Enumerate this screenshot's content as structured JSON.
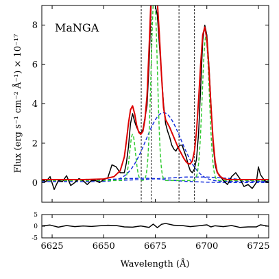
{
  "chart_data": [
    {
      "type": "line",
      "title": "MaNGA",
      "xlabel": "Wavelength (Å)",
      "ylabel": "Flux (erg s⁻¹ cm⁻² Å⁻¹) × 10⁻¹⁷",
      "xlim": [
        6620,
        6730
      ],
      "ylim": [
        -1,
        9
      ],
      "xticks": [
        6625,
        6650,
        6675,
        6700,
        6725
      ],
      "yticks": [
        0,
        2,
        4,
        6,
        8
      ],
      "grid": false,
      "vlines": [
        6668.2,
        6673.0,
        6686.5,
        6694.0
      ],
      "series": [
        {
          "role": "observed",
          "color": "#000000",
          "dash": "solid",
          "x": [
            6620,
            6622,
            6624,
            6626,
            6628,
            6630,
            6632,
            6634,
            6636,
            6638,
            6640,
            6642,
            6644,
            6646,
            6648,
            6650,
            6652,
            6654,
            6656,
            6658,
            6660,
            6661,
            6662,
            6663,
            6664,
            6665,
            6666,
            6667,
            6668,
            6669,
            6670,
            6671,
            6672,
            6673,
            6674,
            6675,
            6676,
            6677,
            6678,
            6679,
            6680,
            6681,
            6682,
            6683,
            6684,
            6685,
            6686,
            6687,
            6688,
            6689,
            6690,
            6691,
            6692,
            6693,
            6694,
            6695,
            6696,
            6697,
            6698,
            6699,
            6700,
            6701,
            6702,
            6703,
            6704,
            6705,
            6706,
            6708,
            6710,
            6712,
            6714,
            6716,
            6718,
            6720,
            6722,
            6724,
            6725,
            6726,
            6728,
            6730
          ],
          "y": [
            0.15,
            0.05,
            0.3,
            -0.35,
            0.1,
            0.05,
            0.35,
            -0.15,
            0.0,
            0.2,
            0.1,
            -0.1,
            0.1,
            0.1,
            0.0,
            0.15,
            0.25,
            0.9,
            0.8,
            0.5,
            0.5,
            1.0,
            1.8,
            3.0,
            3.5,
            3.1,
            2.8,
            2.6,
            2.5,
            2.7,
            3.3,
            3.9,
            6.0,
            9.0,
            9.5,
            9.0,
            8.5,
            7.0,
            5.5,
            4.0,
            3.0,
            2.6,
            2.3,
            1.9,
            1.7,
            1.6,
            1.8,
            1.9,
            1.9,
            1.6,
            1.3,
            0.9,
            0.6,
            0.5,
            0.7,
            1.2,
            2.5,
            4.8,
            7.2,
            8.0,
            7.5,
            6.0,
            4.0,
            2.0,
            0.9,
            0.5,
            0.4,
            0.1,
            -0.1,
            0.3,
            0.5,
            0.2,
            -0.2,
            -0.1,
            -0.3,
            0.0,
            0.8,
            0.4,
            0.1,
            0.0
          ]
        },
        {
          "role": "total fit",
          "color": "#dd0000",
          "dash": "solid",
          "x": [
            6620,
            6630,
            6640,
            6650,
            6655,
            6658,
            6660,
            6661,
            6662,
            6663,
            6664,
            6665,
            6666,
            6667,
            6668,
            6669,
            6670,
            6671,
            6672,
            6673,
            6674,
            6675,
            6676,
            6677,
            6678,
            6679,
            6680,
            6681,
            6682,
            6683,
            6684,
            6685,
            6686,
            6687,
            6688,
            6689,
            6690,
            6691,
            6692,
            6693,
            6694,
            6695,
            6696,
            6697,
            6698,
            6699,
            6700,
            6701,
            6702,
            6703,
            6704,
            6705,
            6706,
            6708,
            6710,
            6715,
            6720,
            6725,
            6730
          ],
          "y": [
            0.15,
            0.15,
            0.15,
            0.18,
            0.3,
            0.6,
            1.3,
            2.1,
            3.0,
            3.7,
            3.9,
            3.5,
            2.9,
            2.55,
            2.45,
            2.6,
            3.2,
            4.4,
            6.8,
            9.5,
            9.6,
            9.5,
            9.2,
            7.5,
            5.5,
            3.8,
            3.2,
            3.0,
            2.8,
            2.55,
            2.3,
            2.05,
            1.8,
            1.6,
            1.4,
            1.2,
            1.05,
            0.95,
            0.95,
            1.1,
            1.6,
            2.6,
            4.2,
            6.0,
            7.5,
            7.9,
            7.3,
            5.8,
            3.9,
            2.2,
            1.1,
            0.55,
            0.35,
            0.2,
            0.15,
            0.15,
            0.15,
            0.15,
            0.15
          ]
        },
        {
          "role": "narrow components",
          "color": "#33cc33",
          "dash": "dashed",
          "gaussians": [
            {
              "center": 6664.0,
              "sigma": 1.4,
              "amp": 2.35
            },
            {
              "center": 6674.5,
              "sigma": 1.5,
              "amp": 9.5
            },
            {
              "center": 6699.5,
              "sigma": 1.7,
              "amp": 7.3
            }
          ],
          "baseline": 0.1
        },
        {
          "role": "broad component",
          "color": "#1a33dd",
          "dash": "dashed",
          "gaussians": [
            {
              "center": 6679.0,
              "sigma": 8.5,
              "amp": 3.5
            }
          ],
          "baseline": 0.05
        },
        {
          "role": "broad base components",
          "color": "#1a33dd",
          "dash": "dashed",
          "x": [
            6620,
            6640,
            6660,
            6670,
            6680,
            6690,
            6700,
            6710,
            6720,
            6730
          ],
          "y": [
            0.1,
            0.1,
            0.12,
            0.16,
            0.22,
            0.28,
            0.28,
            0.22,
            0.12,
            0.05
          ]
        },
        {
          "role": "broad base components 2",
          "color": "#1a33dd",
          "dash": "dashed",
          "x": [
            6620,
            6640,
            6650,
            6660,
            6670,
            6675,
            6680,
            6690,
            6700,
            6710,
            6720,
            6730
          ],
          "y": [
            0.12,
            0.12,
            0.14,
            0.2,
            0.22,
            0.2,
            0.14,
            0.06,
            0.02,
            0.0,
            0.0,
            0.0
          ]
        }
      ]
    },
    {
      "type": "line",
      "title": "",
      "xlabel": "Wavelength (Å)",
      "ylabel": "",
      "xlim": [
        6620,
        6730
      ],
      "ylim": [
        -5,
        5
      ],
      "xticks": [
        6625,
        6650,
        6675,
        6700,
        6725
      ],
      "yticks": [
        -5,
        0,
        5
      ],
      "grid": false,
      "series": [
        {
          "role": "residuals",
          "color": "#000000",
          "dash": "solid",
          "x": [
            6620,
            6624,
            6628,
            6632,
            6636,
            6640,
            6644,
            6648,
            6652,
            6656,
            6660,
            6664,
            6668,
            6672,
            6674,
            6676,
            6678,
            6680,
            6684,
            6688,
            6692,
            6696,
            6700,
            6702,
            6704,
            6708,
            6712,
            6716,
            6720,
            6724,
            6726,
            6730
          ],
          "y": [
            0.1,
            0.5,
            -0.4,
            0.3,
            -0.2,
            0.1,
            -0.1,
            0.2,
            0.4,
            0.3,
            -0.3,
            -0.4,
            0.1,
            -0.5,
            0.9,
            -0.6,
            0.8,
            1.2,
            0.4,
            0.3,
            -0.2,
            0.2,
            0.6,
            -0.3,
            0.2,
            -0.2,
            0.3,
            -0.5,
            -0.3,
            -0.3,
            0.6,
            0.0
          ]
        }
      ]
    }
  ]
}
